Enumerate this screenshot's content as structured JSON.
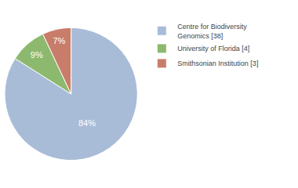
{
  "chart_data": {
    "type": "pie",
    "categories": [
      "Centre for Biodiversity\nGenomics [38]",
      "University of Florida [4]",
      "Smithsonian Institution [3]"
    ],
    "values": [
      84,
      9,
      7
    ],
    "value_labels": [
      "84%",
      "9%",
      "7%"
    ],
    "colors": [
      "#a8bcd8",
      "#8db96e",
      "#c87d6a"
    ],
    "data_labels": true,
    "legend": "upper right"
  }
}
